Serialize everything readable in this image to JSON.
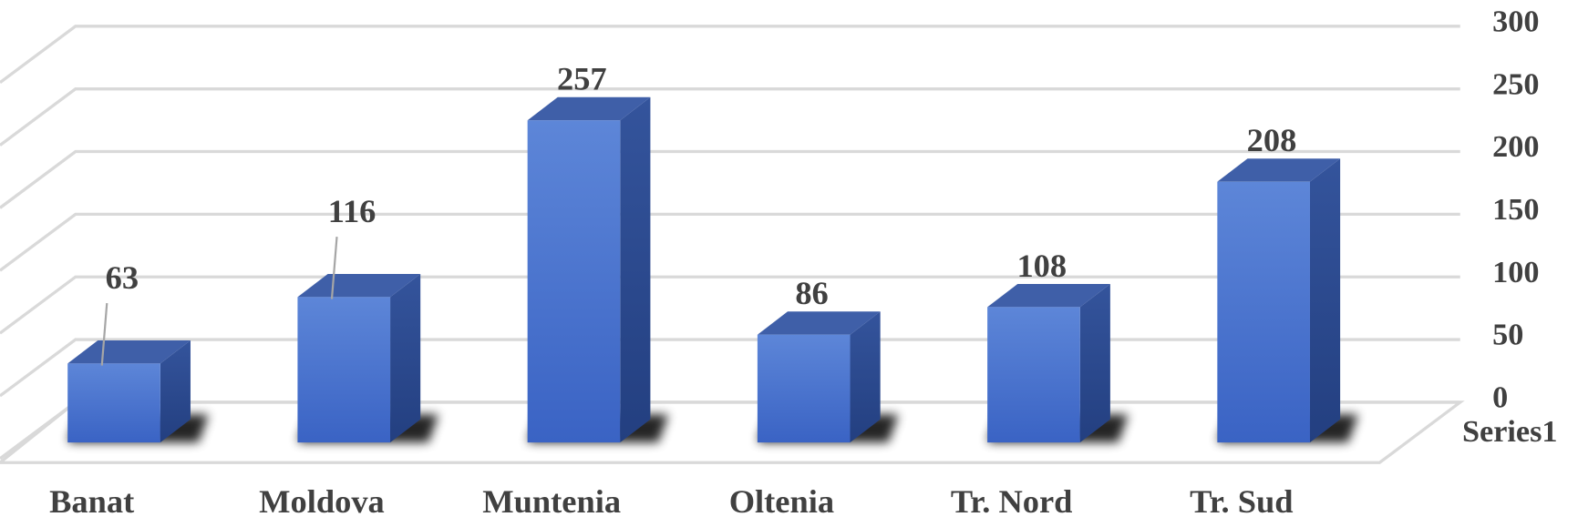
{
  "chart_data": {
    "type": "bar3d",
    "categories": [
      "Banat",
      "Moldova",
      "Muntenia",
      "Oltenia",
      "Tr. Nord",
      "Tr. Sud"
    ],
    "series": [
      {
        "name": "Series1",
        "color": "#4a72cc",
        "values": [
          63,
          116,
          257,
          86,
          108,
          208
        ]
      }
    ],
    "ylim": [
      0,
      300
    ],
    "yticks": [
      0,
      50,
      100,
      150,
      200,
      250,
      300
    ],
    "grid": true
  }
}
